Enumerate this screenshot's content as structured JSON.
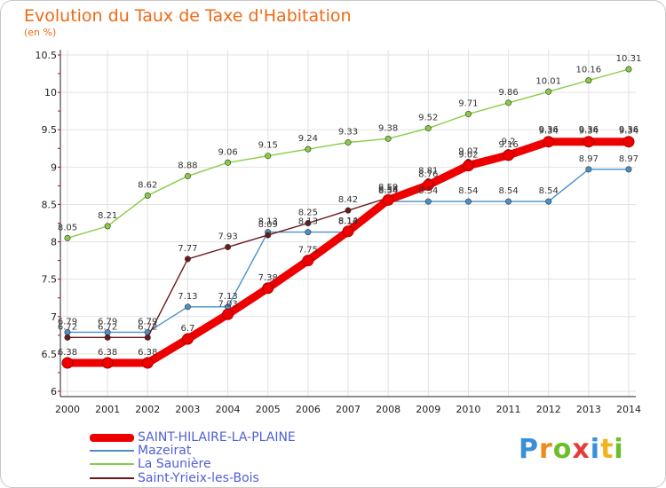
{
  "title": "Evolution du Taux de Taxe d'Habitation",
  "subtitle": "(en %)",
  "logo_text": "Proxiti",
  "chart_data": {
    "type": "line",
    "x": [
      "2000",
      "2001",
      "2002",
      "2003",
      "2004",
      "2005",
      "2006",
      "2007",
      "2008",
      "2009",
      "2010",
      "2011",
      "2012",
      "2013",
      "2014"
    ],
    "ylim": [
      6,
      10.5
    ],
    "yticks": [
      "6",
      "6.5",
      "7",
      "7.5",
      "8",
      "8.5",
      "9",
      "9.5",
      "10",
      "10.5"
    ],
    "grid": true,
    "legend_position": "bottom-left",
    "series": [
      {
        "name": "SAINT-HILAIRE-LA-PLAINE",
        "color": "#ee0000",
        "values": [
          6.38,
          6.38,
          6.38,
          6.7,
          7.03,
          7.38,
          7.75,
          8.14,
          8.56,
          8.76,
          9.02,
          9.16,
          9.34,
          9.34,
          9.34
        ]
      },
      {
        "name": "Mazeirat",
        "color": "#4a90c8",
        "values": [
          6.79,
          6.79,
          6.79,
          7.13,
          7.13,
          8.13,
          8.13,
          8.13,
          8.54,
          8.54,
          8.54,
          8.54,
          8.54,
          8.97,
          8.97
        ]
      },
      {
        "name": "La Saunière",
        "color": "#88cc44",
        "values": [
          8.05,
          8.21,
          8.62,
          8.88,
          9.06,
          9.15,
          9.24,
          9.33,
          9.38,
          9.52,
          9.71,
          9.86,
          10.01,
          10.16,
          10.31
        ]
      },
      {
        "name": "Saint-Yrieix-les-Bois",
        "color": "#6b1a1a",
        "values": [
          6.72,
          6.72,
          6.72,
          7.77,
          7.93,
          8.09,
          8.25,
          8.42,
          8.59,
          8.81,
          9.07,
          9.2,
          9.36,
          9.36,
          9.36
        ]
      }
    ]
  }
}
